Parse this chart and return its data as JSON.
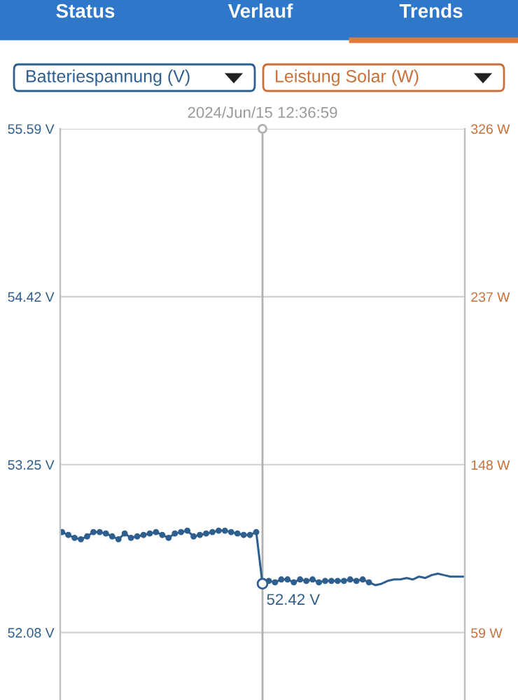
{
  "chart_data": {
    "type": "line",
    "annotations": [
      "Status",
      "Verlauf",
      "Trends"
    ],
    "ylabel": "Batteriespannung (V)",
    "y2label": "Leistung Solar (W)",
    "categories": [
      null,
      null,
      null,
      null,
      null,
      null,
      null,
      null,
      null,
      null,
      null,
      null,
      null,
      null,
      null,
      null,
      null,
      null,
      null,
      null,
      null,
      null,
      null,
      null,
      null,
      null,
      null,
      null,
      null,
      null,
      null,
      null,
      null,
      null,
      null,
      null,
      null,
      null,
      null,
      null,
      null,
      null,
      null,
      null,
      null,
      null,
      null,
      null,
      null,
      null,
      null,
      null,
      null,
      null,
      null,
      null,
      null,
      null,
      null,
      null,
      null,
      null,
      null,
      null,
      null
    ],
    "series": [
      {
        "color": "#2e5f8f",
        "marker": "circle",
        "values": [
          52.78,
          52.76,
          52.74,
          52.73,
          52.75,
          52.78,
          52.78,
          52.77,
          52.75,
          52.73,
          52.77,
          52.74,
          52.75,
          52.76,
          52.77,
          52.78,
          52.76,
          52.74,
          52.77,
          52.78,
          52.79,
          52.75,
          52.76,
          52.77,
          52.78,
          52.79,
          52.79,
          52.78,
          52.77,
          52.76,
          52.76,
          52.78,
          52.42,
          52.44,
          52.43,
          52.45,
          52.45,
          52.43,
          52.45,
          52.44,
          52.45,
          52.43,
          52.44,
          52.44,
          52.44,
          52.44,
          52.45,
          52.44,
          52.45,
          52.43,
          null,
          null,
          null,
          null,
          null,
          null,
          null,
          null,
          null,
          null,
          null,
          null,
          null,
          null,
          null
        ],
        "value_labels": [
          null,
          null,
          null,
          null,
          null,
          null,
          null,
          null,
          null,
          null,
          null,
          null,
          null,
          null,
          null,
          null,
          null,
          null,
          null,
          null,
          null,
          null,
          null,
          null,
          null,
          null,
          null,
          null,
          null,
          null,
          null,
          null,
          "52.42 V",
          null,
          null,
          null,
          null,
          null,
          null,
          null,
          null,
          null,
          null,
          null,
          null,
          null,
          null,
          null,
          null,
          null,
          null,
          null,
          null,
          null,
          null,
          null,
          null,
          null,
          null,
          null,
          null,
          null,
          null,
          null,
          null
        ]
      },
      {
        "color": "#2e5f8f",
        "marker": "none",
        "values": [
          null,
          null,
          null,
          null,
          null,
          null,
          null,
          null,
          null,
          null,
          null,
          null,
          null,
          null,
          null,
          null,
          null,
          null,
          null,
          null,
          null,
          null,
          null,
          null,
          null,
          null,
          null,
          null,
          null,
          null,
          null,
          null,
          null,
          null,
          null,
          null,
          null,
          null,
          null,
          null,
          null,
          null,
          null,
          null,
          null,
          null,
          null,
          null,
          null,
          52.43,
          52.41,
          52.42,
          52.44,
          52.45,
          52.45,
          52.46,
          52.45,
          52.47,
          52.46,
          52.48,
          52.49,
          52.48,
          52.47,
          52.47,
          52.47
        ]
      }
    ],
    "ylim": [
      51.61,
      55.59
    ],
    "yticks": [
      {
        "value": 52.08,
        "label": "52.08 V"
      },
      {
        "value": 53.25,
        "label": "53.25 V"
      },
      {
        "value": 54.42,
        "label": "54.42 V"
      },
      {
        "value": 55.59,
        "label": "55.59 V"
      }
    ],
    "y2lim": [
      23.4,
      326
    ],
    "y2ticks": [
      {
        "value": 59,
        "label": "59 W"
      },
      {
        "value": 148,
        "label": "148 W"
      },
      {
        "value": 237,
        "label": "237 W"
      },
      {
        "value": 326,
        "label": "326 W"
      }
    ],
    "ref_lines": [
      {
        "axis": "x",
        "label": "2024/Jun/15 12:36:59",
        "color": "#b0b0b0"
      }
    ],
    "grid": "y",
    "tick_labels": "y"
  }
}
